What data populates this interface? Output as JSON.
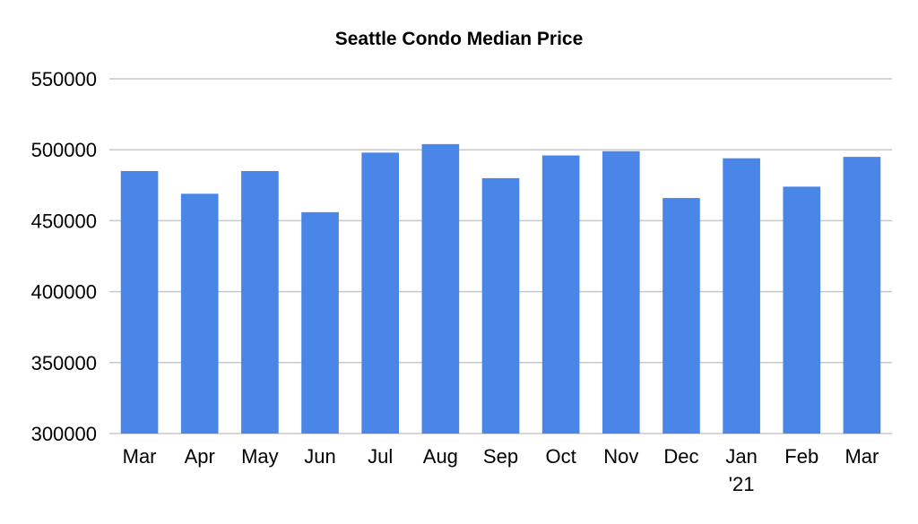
{
  "chart_data": {
    "type": "bar",
    "title": "Seattle Condo Median Price",
    "xlabel": "",
    "ylabel": "",
    "categories": [
      [
        "Mar"
      ],
      [
        "Apr"
      ],
      [
        "May"
      ],
      [
        "Jun"
      ],
      [
        "Jul"
      ],
      [
        "Aug"
      ],
      [
        "Sep"
      ],
      [
        "Oct"
      ],
      [
        "Nov"
      ],
      [
        "Dec"
      ],
      [
        "Jan",
        "'21"
      ],
      [
        "Feb"
      ],
      [
        "Mar"
      ]
    ],
    "values": [
      485000,
      469000,
      485000,
      456000,
      498000,
      504000,
      480000,
      496000,
      499000,
      466000,
      494000,
      474000,
      495000
    ],
    "ylim": [
      300000,
      550000
    ],
    "yticks": [
      "300000",
      "350000",
      "400000",
      "450000",
      "500000",
      "550000"
    ],
    "ytick_values": [
      300000,
      350000,
      400000,
      450000,
      500000,
      550000
    ],
    "grid": true,
    "bar_color": "#4a86e8",
    "grid_color": "#c8c8c8"
  }
}
